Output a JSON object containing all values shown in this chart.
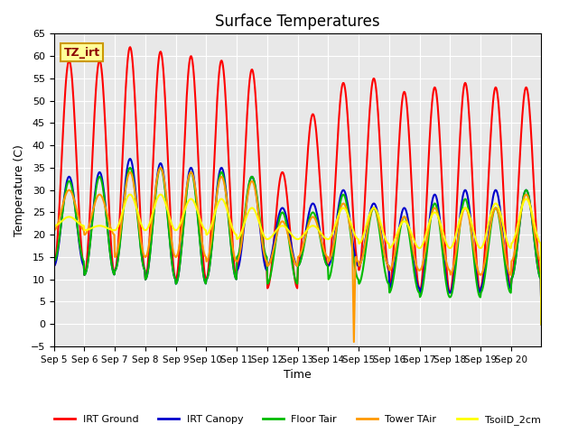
{
  "title": "Surface Temperatures",
  "xlabel": "Time",
  "ylabel": "Temperature (C)",
  "ylim": [
    -5,
    65
  ],
  "bg_color": "#e8e8e8",
  "fig_bg_color": "#ffffff",
  "annotation_label": "TZ_irt",
  "annotation_bg": "#ffff99",
  "annotation_border": "#cc9900",
  "x_tick_labels": [
    "Sep 5",
    "Sep 6",
    "Sep 7",
    "Sep 8",
    "Sep 9",
    "Sep 10",
    "Sep 11",
    "Sep 12",
    "Sep 13",
    "Sep 14",
    "Sep 15",
    "Sep 16",
    "Sep 17",
    "Sep 18",
    "Sep 19",
    "Sep 20"
  ],
  "series": {
    "IRT Ground": {
      "color": "#ff0000",
      "linewidth": 1.5,
      "peaks": [
        59,
        59,
        62,
        61,
        60,
        59,
        57,
        34,
        47,
        54,
        55,
        52,
        53,
        54,
        53,
        53
      ],
      "troughs": [
        13,
        11,
        12,
        10,
        10,
        10,
        12,
        8,
        13,
        13,
        12,
        8,
        7,
        7,
        8,
        10
      ]
    },
    "IRT Canopy": {
      "color": "#0000cc",
      "linewidth": 1.5,
      "peaks": [
        33,
        34,
        37,
        36,
        35,
        35,
        33,
        26,
        27,
        30,
        27,
        26,
        29,
        30,
        30,
        30
      ],
      "troughs": [
        13,
        11,
        12,
        10,
        9,
        10,
        12,
        13,
        13,
        13,
        13,
        8,
        7,
        7,
        8,
        10
      ]
    },
    "Floor Tair": {
      "color": "#00bb00",
      "linewidth": 1.5,
      "peaks": [
        32,
        33,
        35,
        35,
        34,
        34,
        33,
        25,
        25,
        29,
        26,
        24,
        27,
        28,
        26,
        30
      ],
      "troughs": [
        14,
        11,
        12,
        10,
        9,
        10,
        15,
        9,
        13,
        10,
        9,
        7,
        6,
        6,
        7,
        10
      ]
    },
    "Tower TAir": {
      "color": "#ff9900",
      "linewidth": 1.5,
      "peaks": [
        30,
        29,
        34,
        35,
        34,
        33,
        32,
        23,
        24,
        27,
        26,
        24,
        26,
        26,
        26,
        29
      ],
      "troughs": [
        21,
        20,
        15,
        15,
        15,
        14,
        14,
        13,
        15,
        14,
        13,
        12,
        12,
        11,
        11,
        14
      ],
      "anomaly_day": 9,
      "anomaly_val": -4
    },
    "TsoilD_2cm": {
      "color": "#ffff00",
      "linewidth": 1.5,
      "peaks": [
        24,
        22,
        29,
        29,
        28,
        28,
        26,
        22,
        22,
        26,
        26,
        23,
        25,
        26,
        27,
        28
      ],
      "troughs": [
        22,
        21,
        21,
        21,
        21,
        20,
        19,
        19,
        19,
        19,
        18,
        17,
        17,
        17,
        17,
        18
      ]
    }
  },
  "points_per_day": 48
}
